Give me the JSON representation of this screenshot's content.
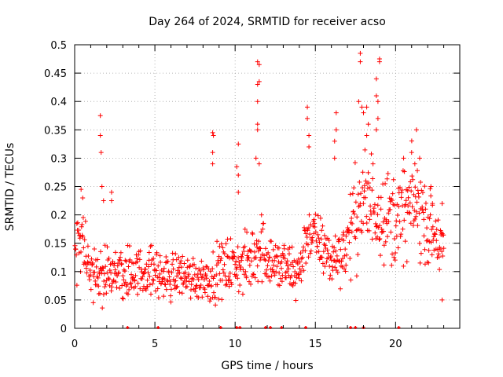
{
  "chart_data": {
    "type": "scatter",
    "title": "Day 264 of 2024, SRMTID for receiver acso",
    "xlabel": "GPS time / hours",
    "ylabel": "SRMTID / TECUs",
    "xlim": [
      0,
      24
    ],
    "ylim": [
      0,
      0.5
    ],
    "x_ticks": [
      0,
      5,
      10,
      15,
      20
    ],
    "y_ticks": [
      0,
      0.05,
      0.1,
      0.15,
      0.2,
      0.25,
      0.3,
      0.35,
      0.4,
      0.45,
      0.5
    ],
    "x_tick_labels": [
      "0",
      "5",
      "10",
      "15",
      "20"
    ],
    "y_tick_labels": [
      "0",
      "0.05",
      "0.1",
      "0.15",
      "0.2",
      "0.25",
      "0.3",
      "0.35",
      "0.4",
      "0.45",
      "0.5"
    ],
    "grid": true,
    "marker": "+",
    "series_color": "#ff0000",
    "baseline_marks_x": [
      3.3,
      5.2,
      9.1,
      10.1,
      10.3,
      11.9,
      12.2,
      12.9,
      14.4,
      17.2,
      17.5,
      18.0,
      20.2
    ],
    "envelope": {
      "x": [
        0,
        0.3,
        0.5,
        1,
        1.5,
        2,
        2.5,
        3,
        3.5,
        4,
        4.5,
        5,
        5.5,
        6,
        6.5,
        7,
        7.5,
        8,
        8.5,
        9,
        9.5,
        10,
        10.5,
        11,
        11.5,
        12,
        12.5,
        13,
        13.5,
        14,
        14.5,
        15,
        15.5,
        16,
        16.5,
        17,
        17.5,
        18,
        18.5,
        19,
        19.5,
        20,
        20.5,
        21,
        21.5,
        22,
        22.5,
        23
      ],
      "median": [
        0.12,
        0.16,
        0.15,
        0.11,
        0.09,
        0.09,
        0.1,
        0.1,
        0.1,
        0.1,
        0.1,
        0.1,
        0.09,
        0.09,
        0.1,
        0.09,
        0.09,
        0.09,
        0.09,
        0.1,
        0.11,
        0.11,
        0.11,
        0.12,
        0.15,
        0.13,
        0.11,
        0.11,
        0.1,
        0.1,
        0.17,
        0.16,
        0.14,
        0.12,
        0.13,
        0.15,
        0.2,
        0.22,
        0.22,
        0.21,
        0.2,
        0.19,
        0.2,
        0.22,
        0.21,
        0.18,
        0.16,
        0.14
      ],
      "spread": [
        0.03,
        0.04,
        0.04,
        0.03,
        0.03,
        0.03,
        0.03,
        0.03,
        0.03,
        0.025,
        0.025,
        0.03,
        0.025,
        0.025,
        0.025,
        0.025,
        0.025,
        0.025,
        0.025,
        0.03,
        0.03,
        0.03,
        0.03,
        0.035,
        0.04,
        0.035,
        0.03,
        0.03,
        0.03,
        0.03,
        0.03,
        0.03,
        0.03,
        0.03,
        0.03,
        0.04,
        0.05,
        0.06,
        0.06,
        0.05,
        0.05,
        0.05,
        0.05,
        0.05,
        0.05,
        0.04,
        0.04,
        0.03
      ]
    },
    "spikes": [
      {
        "x": 0.4,
        "y": 0.245
      },
      {
        "x": 0.5,
        "y": 0.23
      },
      {
        "x": 1.6,
        "y": 0.375
      },
      {
        "x": 1.6,
        "y": 0.34
      },
      {
        "x": 1.65,
        "y": 0.31
      },
      {
        "x": 1.7,
        "y": 0.25
      },
      {
        "x": 1.8,
        "y": 0.225
      },
      {
        "x": 2.3,
        "y": 0.24
      },
      {
        "x": 2.3,
        "y": 0.225
      },
      {
        "x": 8.6,
        "y": 0.345
      },
      {
        "x": 8.65,
        "y": 0.34
      },
      {
        "x": 8.6,
        "y": 0.31
      },
      {
        "x": 8.6,
        "y": 0.29
      },
      {
        "x": 10.2,
        "y": 0.325
      },
      {
        "x": 10.1,
        "y": 0.285
      },
      {
        "x": 10.2,
        "y": 0.27
      },
      {
        "x": 10.2,
        "y": 0.24
      },
      {
        "x": 11.4,
        "y": 0.47
      },
      {
        "x": 11.5,
        "y": 0.465
      },
      {
        "x": 11.5,
        "y": 0.435
      },
      {
        "x": 11.4,
        "y": 0.43
      },
      {
        "x": 11.4,
        "y": 0.4
      },
      {
        "x": 11.4,
        "y": 0.36
      },
      {
        "x": 11.4,
        "y": 0.35
      },
      {
        "x": 11.3,
        "y": 0.3
      },
      {
        "x": 11.5,
        "y": 0.29
      },
      {
        "x": 14.5,
        "y": 0.39
      },
      {
        "x": 14.5,
        "y": 0.37
      },
      {
        "x": 14.6,
        "y": 0.34
      },
      {
        "x": 14.6,
        "y": 0.32
      },
      {
        "x": 16.3,
        "y": 0.38
      },
      {
        "x": 16.3,
        "y": 0.35
      },
      {
        "x": 16.2,
        "y": 0.33
      },
      {
        "x": 16.2,
        "y": 0.3
      },
      {
        "x": 17.8,
        "y": 0.485
      },
      {
        "x": 17.8,
        "y": 0.47
      },
      {
        "x": 17.7,
        "y": 0.4
      },
      {
        "x": 17.9,
        "y": 0.39
      },
      {
        "x": 18.0,
        "y": 0.38
      },
      {
        "x": 18.2,
        "y": 0.39
      },
      {
        "x": 18.3,
        "y": 0.36
      },
      {
        "x": 18.2,
        "y": 0.34
      },
      {
        "x": 18.8,
        "y": 0.44
      },
      {
        "x": 18.8,
        "y": 0.41
      },
      {
        "x": 18.9,
        "y": 0.4
      },
      {
        "x": 19.0,
        "y": 0.475
      },
      {
        "x": 19.0,
        "y": 0.47
      },
      {
        "x": 18.9,
        "y": 0.37
      },
      {
        "x": 18.8,
        "y": 0.35
      },
      {
        "x": 20.5,
        "y": 0.3
      },
      {
        "x": 21.0,
        "y": 0.31
      },
      {
        "x": 21.3,
        "y": 0.35
      },
      {
        "x": 21.5,
        "y": 0.3
      },
      {
        "x": 21.2,
        "y": 0.29
      },
      {
        "x": 22.2,
        "y": 0.25
      },
      {
        "x": 22.3,
        "y": 0.22
      },
      {
        "x": 22.9,
        "y": 0.22
      },
      {
        "x": 22.9,
        "y": 0.05
      }
    ]
  }
}
